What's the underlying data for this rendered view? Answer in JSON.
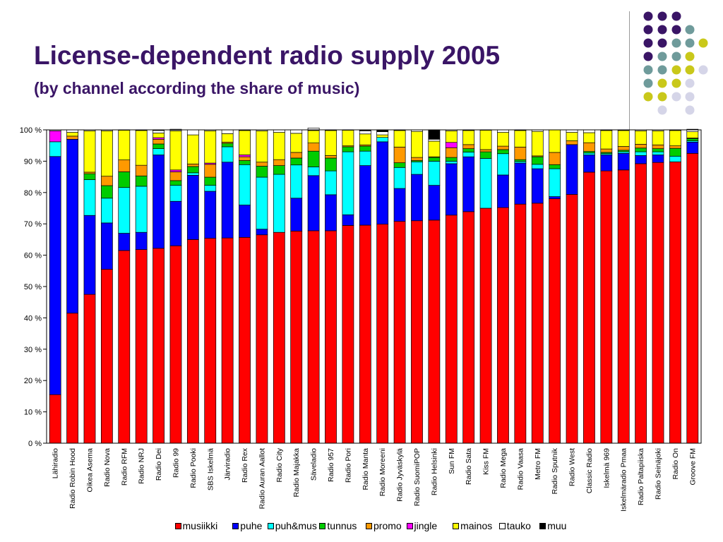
{
  "slide": {
    "title": "License-dependent radio supply 2005",
    "subtitle": "(by channel according the share of music)"
  },
  "decoration": {
    "dot_colors": {
      "purple": "#3a1566",
      "teal": "#6f9b9b",
      "olive": "#c9c81a",
      "lavender": "#d5d5e8"
    }
  },
  "chart_data": {
    "type": "bar",
    "stacked": true,
    "percent": true,
    "title": "",
    "xlabel": "",
    "ylabel": "",
    "ylim": [
      0,
      100
    ],
    "y_ticks": [
      "0 %",
      "10 %",
      "20 %",
      "30 %",
      "40 %",
      "50 %",
      "60 %",
      "70 %",
      "80 %",
      "90 %",
      "100 %"
    ],
    "grid": false,
    "legend_position": "bottom",
    "categories": [
      "Lähiradio",
      "Radio Robin Hood",
      "Oikea Asema",
      "Radio Nova",
      "Radio RFM",
      "Radio NRJ",
      "Radio Dei",
      "Radio 99",
      "Radio Pooki",
      "SBS Iskelmä",
      "Järviradio",
      "Radio Rex",
      "Radio Auran Aallot",
      "Radio City",
      "Radio Majakka",
      "Säveladio",
      "Radio 957",
      "Radio Pori",
      "Radio Manta",
      "Radio Moreeni",
      "Radio Jyväskylä",
      "Radio SuomiPOP",
      "Radio Helsinki",
      "Sun FM",
      "Radio Sata",
      "Kiss FM",
      "Radio Mega",
      "Radio Vaasa",
      "Metro FM",
      "Radio Sputnik",
      "Radio West",
      "Classic Radio",
      "Iskelmä 969",
      "Iskelmäradio Pmaa",
      "Radio Paltapiiska",
      "Radio Seinäjoki",
      "Radio On",
      "Groove FM"
    ],
    "series": [
      {
        "name": "musiikki",
        "color": "#ff0000",
        "values": [
          15.5,
          41.5,
          47.5,
          55.5,
          61.5,
          61.8,
          62.2,
          63.0,
          65.0,
          65.4,
          65.5,
          65.7,
          66.5,
          67.3,
          67.7,
          67.8,
          67.8,
          69.5,
          69.6,
          69.9,
          70.8,
          71.0,
          71.2,
          72.8,
          73.9,
          75.0,
          75.2,
          76.3,
          76.6,
          78.0,
          79.4,
          86.5,
          86.9,
          87.2,
          89.2,
          89.6,
          89.8,
          92.5
        ]
      },
      {
        "name": "puhe",
        "color": "#0000ff",
        "values": [
          76.0,
          55.5,
          25.2,
          14.8,
          5.5,
          5.5,
          29.8,
          14.2,
          20.5,
          15.0,
          24.2,
          10.3,
          1.8,
          0.0,
          10.5,
          17.6,
          11.5,
          3.4,
          19.0,
          26.3,
          10.5,
          14.8,
          11.1,
          16.4,
          17.5,
          0.0,
          10.4,
          13.1,
          11.0,
          0.7,
          15.9,
          5.5,
          5.1,
          5.3,
          2.6,
          2.4,
          0.0,
          3.6
        ]
      },
      {
        "name": "puh&mus",
        "color": "#00ffff",
        "values": [
          4.7,
          0.0,
          11.4,
          7.9,
          14.6,
          14.7,
          2.0,
          5.1,
          0.8,
          1.9,
          4.9,
          12.9,
          16.6,
          18.5,
          10.6,
          2.8,
          7.6,
          20.1,
          4.6,
          1.4,
          6.7,
          4.0,
          7.7,
          0.8,
          1.5,
          15.9,
          6.8,
          0.5,
          1.4,
          8.9,
          0.0,
          0.6,
          0.4,
          0.5,
          1.2,
          1.0,
          1.8,
          0.4
        ]
      },
      {
        "name": "tunnus",
        "color": "#00cc00",
        "values": [
          0.0,
          0.0,
          1.9,
          4.0,
          5.0,
          3.3,
          1.5,
          1.5,
          2.0,
          2.6,
          1.1,
          1.3,
          3.5,
          2.8,
          2.2,
          5.0,
          4.1,
          1.6,
          1.6,
          0.0,
          1.5,
          0.4,
          1.2,
          1.2,
          1.1,
          2.1,
          1.3,
          0.6,
          2.4,
          1.3,
          0.0,
          0.5,
          0.4,
          0.5,
          1.2,
          1.0,
          2.5,
          0.7
        ]
      },
      {
        "name": "promo",
        "color": "#ff9900",
        "values": [
          0.0,
          1.0,
          0.5,
          3.0,
          3.8,
          3.4,
          1.5,
          2.8,
          0.8,
          4.1,
          0.4,
          1.2,
          1.3,
          1.9,
          1.8,
          2.6,
          0.8,
          0.3,
          0.4,
          0.0,
          5.0,
          1.0,
          0.2,
          3.1,
          1.3,
          0.7,
          1.1,
          4.0,
          0.3,
          3.9,
          1.2,
          2.8,
          1.1,
          1.2,
          1.2,
          1.2,
          0.8,
          0.2
        ]
      },
      {
        "name": "jingle",
        "color": "#ff00ff",
        "values": [
          3.5,
          0.0,
          0.0,
          0.0,
          0.0,
          0.0,
          0.5,
          0.6,
          0.0,
          0.4,
          0.0,
          0.6,
          0.0,
          0.0,
          0.0,
          0.0,
          0.0,
          0.0,
          0.0,
          0.0,
          0.0,
          0.0,
          0.0,
          1.7,
          0.0,
          0.0,
          0.0,
          0.0,
          0.0,
          0.0,
          0.0,
          0.0,
          0.0,
          0.0,
          0.0,
          0.0,
          0.0,
          0.0
        ]
      },
      {
        "name": "mainos",
        "color": "#ffff00",
        "values": [
          0.0,
          1.2,
          13.2,
          14.5,
          9.5,
          11.1,
          1.5,
          12.5,
          9.3,
          10.3,
          2.7,
          7.8,
          10.0,
          8.7,
          6.1,
          4.0,
          8.0,
          5.0,
          3.5,
          0.8,
          5.3,
          8.3,
          5.0,
          3.7,
          4.5,
          6.2,
          4.4,
          5.3,
          7.8,
          7.2,
          2.7,
          3.2,
          5.9,
          5.1,
          4.3,
          4.5,
          4.9,
          2.0
        ]
      },
      {
        "name": "tauko",
        "color": "#ffffff",
        "values": [
          0.3,
          0.8,
          0.3,
          0.3,
          0.1,
          0.2,
          0.8,
          0.5,
          1.6,
          0.3,
          1.2,
          0.2,
          0.3,
          0.8,
          1.1,
          0.8,
          0.2,
          0.1,
          1.0,
          1.0,
          0.2,
          0.5,
          0.6,
          0.3,
          0.2,
          0.1,
          0.8,
          0.2,
          0.5,
          0.0,
          0.8,
          0.9,
          0.2,
          0.2,
          0.3,
          0.3,
          0.2,
          0.6
        ]
      },
      {
        "name": "muu",
        "color": "#000000",
        "values": [
          0.0,
          0.0,
          0.0,
          0.0,
          0.0,
          0.0,
          0.2,
          0.0,
          0.0,
          0.0,
          0.0,
          0.0,
          0.0,
          0.0,
          0.0,
          0.0,
          0.0,
          0.0,
          0.3,
          0.6,
          0.0,
          0.0,
          3.0,
          0.0,
          0.0,
          0.0,
          0.0,
          0.0,
          0.0,
          0.0,
          0.0,
          0.0,
          0.0,
          0.0,
          0.0,
          0.0,
          0.0,
          0.2
        ]
      }
    ]
  }
}
